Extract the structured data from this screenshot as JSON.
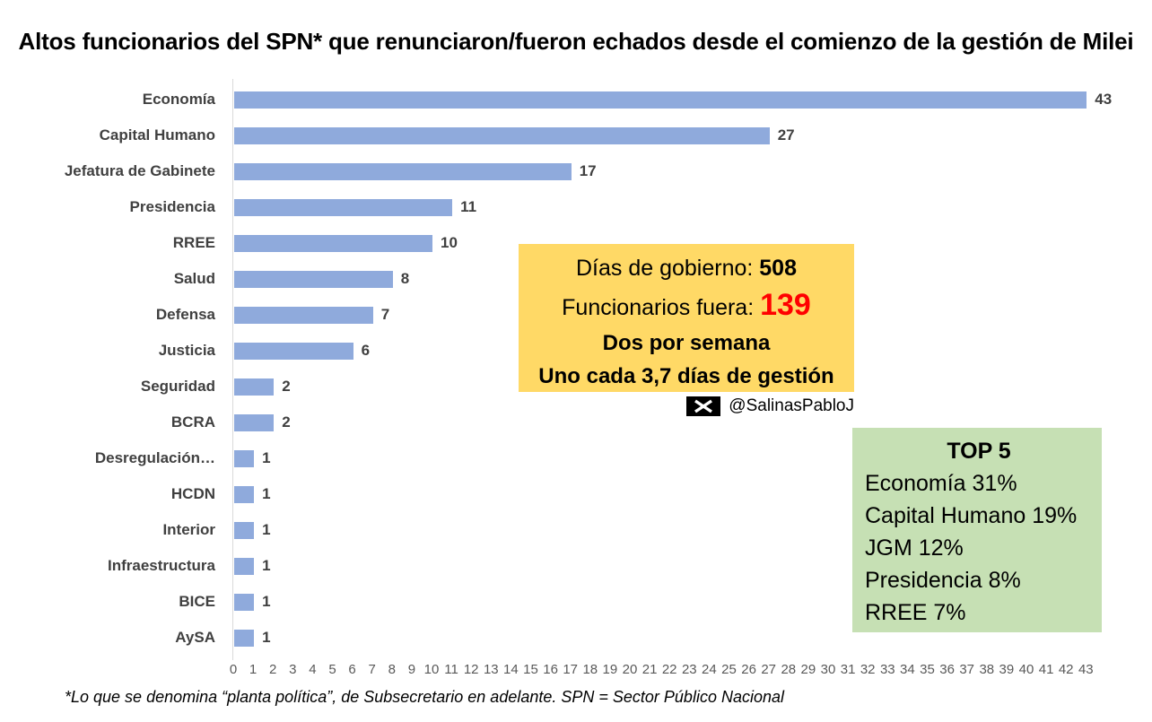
{
  "chart_data": {
    "type": "bar",
    "orientation": "horizontal",
    "title": "Altos funcionarios del SPN* que renunciaron/fueron echados desde el comienzo de la gestión de Milei",
    "categories": [
      "Economía",
      "Capital Humano",
      "Jefatura de Gabinete",
      "Presidencia",
      "RREE",
      "Salud",
      "Defensa",
      "Justicia",
      "Seguridad",
      "BCRA",
      "Desregulación…",
      "HCDN",
      "Interior",
      "Infraestructura",
      "BICE",
      "AySA"
    ],
    "values": [
      43,
      27,
      17,
      11,
      10,
      8,
      7,
      6,
      2,
      2,
      1,
      1,
      1,
      1,
      1,
      1
    ],
    "xlabel": "",
    "ylabel": "",
    "xlim": [
      0,
      43
    ],
    "x_ticks": [
      0,
      1,
      2,
      3,
      4,
      5,
      6,
      7,
      8,
      9,
      10,
      11,
      12,
      13,
      14,
      15,
      16,
      17,
      18,
      19,
      20,
      21,
      22,
      23,
      24,
      25,
      26,
      27,
      28,
      29,
      30,
      31,
      32,
      33,
      34,
      35,
      36,
      37,
      38,
      39,
      40,
      41,
      42,
      43
    ],
    "grid": false,
    "legend": "none",
    "data_labels": true,
    "bar_color": "#8FAADC"
  },
  "info_box": {
    "bg_color": "#FFD966",
    "line1_label": "Días de gobierno: ",
    "line1_value": "508",
    "line2_label": "Funcionarios fuera: ",
    "line2_value": "139",
    "line2_value_color": "#FF0000",
    "line3": "Dos por semana",
    "line4": "Uno cada 3,7 días de gestión"
  },
  "credit": {
    "icon": "x-twitter-logo",
    "handle": "@SalinasPabloJ"
  },
  "top5_box": {
    "bg_color": "#C6E0B4",
    "title": "TOP 5",
    "items": [
      "Economía 31%",
      "Capital Humano 19%",
      "JGM 12%",
      "Presidencia 8%",
      "RREE 7%"
    ]
  },
  "footnote": "*Lo que se denomina “planta política”, de Subsecretario en adelante. SPN = Sector Público Nacional"
}
